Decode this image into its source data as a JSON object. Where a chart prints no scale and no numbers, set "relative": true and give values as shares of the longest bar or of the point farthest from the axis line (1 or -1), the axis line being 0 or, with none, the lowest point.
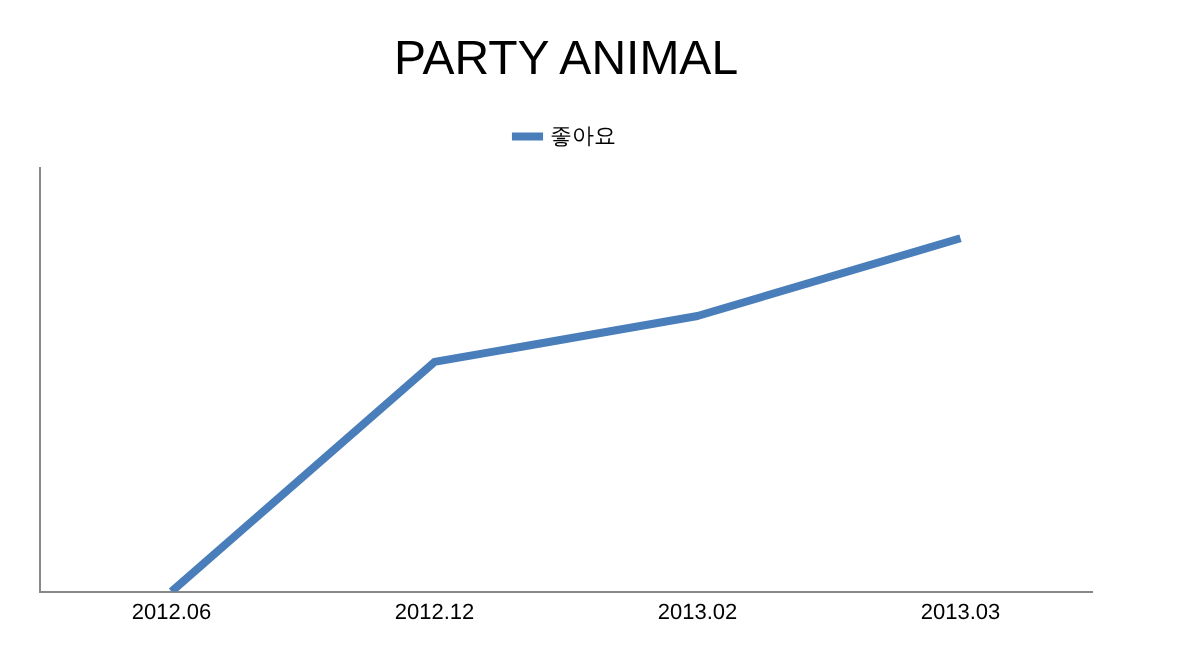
{
  "chart_data": {
    "type": "line",
    "title": "PARTY ANIMAL",
    "categories": [
      "2012.06",
      "2012.12",
      "2013.02",
      "2013.03"
    ],
    "series": [
      {
        "name": "좋아요",
        "color": "#4a7ebb",
        "values": [
          0,
          0.65,
          0.78,
          1
        ]
      }
    ],
    "relative": true,
    "legend": "top",
    "grid": false,
    "marker": "none"
  }
}
